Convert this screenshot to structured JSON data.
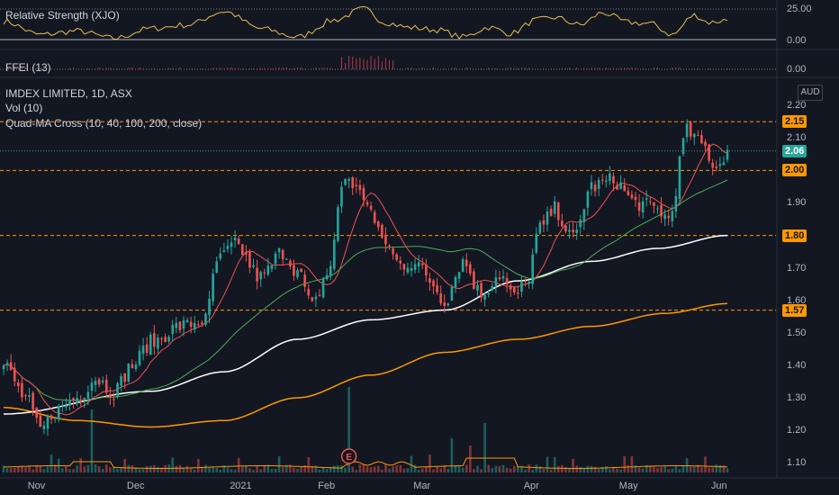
{
  "header": {
    "rs_title": "Relative Strength (XJO)",
    "rs_ticks": [
      "25.00",
      "0.00"
    ],
    "fei_title": "FFEI (13)",
    "fei_tick": "0.00",
    "main_title": "IMDEX LIMITED, 1D, ASX",
    "vol_title": "Vol (10)",
    "ma_title": "Quad-MA Cross (10, 40, 100, 200, close)",
    "currency": "AUD",
    "earnings_marker": "E"
  },
  "colors": {
    "background": "#131722",
    "up": "#26a69a",
    "down": "#ef5350",
    "ma10": "#ef5350",
    "ma40": "#4caf50",
    "ma100": "#ffffff",
    "ma200": "#ff9800",
    "level": "#ff9800",
    "rs": "#e6c14f"
  },
  "chart_data": {
    "type": "candlestick",
    "y_ticks": [
      "2.20",
      "2.10",
      "2.00",
      "1.90",
      "1.80",
      "1.70",
      "1.60",
      "1.50",
      "1.40",
      "1.30",
      "1.20",
      "1.10"
    ],
    "ylim": [
      1.07,
      2.22
    ],
    "x_tick_labels": [
      "Nov",
      "Dec",
      "2021",
      "Feb",
      "Mar",
      "Apr",
      "May",
      "Jun"
    ],
    "levels": [
      {
        "value": 2.15,
        "label": "2.15"
      },
      {
        "value": 2.0,
        "label": "2.00"
      },
      {
        "value": 1.8,
        "label": "1.80"
      },
      {
        "value": 1.57,
        "label": "1.57"
      }
    ],
    "last_price": {
      "value": 2.06,
      "label": "2.06"
    },
    "ma_anchors": {
      "ma100": [
        [
          0,
          1.25
        ],
        [
          40,
          1.32
        ],
        [
          60,
          1.38
        ],
        [
          80,
          1.48
        ],
        [
          100,
          1.54
        ],
        [
          120,
          1.57
        ],
        [
          140,
          1.66
        ],
        [
          160,
          1.72
        ],
        [
          178,
          1.76
        ],
        [
          197,
          1.8
        ]
      ],
      "ma200": [
        [
          0,
          1.27
        ],
        [
          20,
          1.23
        ],
        [
          40,
          1.21
        ],
        [
          60,
          1.23
        ],
        [
          80,
          1.3
        ],
        [
          100,
          1.37
        ],
        [
          120,
          1.44
        ],
        [
          140,
          1.48
        ],
        [
          160,
          1.52
        ],
        [
          180,
          1.56
        ],
        [
          197,
          1.59
        ]
      ]
    },
    "candle_anchors": [
      [
        0,
        1.4
      ],
      [
        6,
        1.3
      ],
      [
        10,
        1.2
      ],
      [
        14,
        1.26
      ],
      [
        20,
        1.3
      ],
      [
        25,
        1.36
      ],
      [
        30,
        1.32
      ],
      [
        35,
        1.4
      ],
      [
        40,
        1.47
      ],
      [
        48,
        1.52
      ],
      [
        55,
        1.54
      ],
      [
        58,
        1.72
      ],
      [
        63,
        1.77
      ],
      [
        70,
        1.67
      ],
      [
        76,
        1.75
      ],
      [
        80,
        1.69
      ],
      [
        84,
        1.58
      ],
      [
        88,
        1.68
      ],
      [
        93,
        1.98
      ],
      [
        98,
        1.92
      ],
      [
        103,
        1.79
      ],
      [
        108,
        1.71
      ],
      [
        112,
        1.72
      ],
      [
        116,
        1.66
      ],
      [
        120,
        1.6
      ],
      [
        125,
        1.72
      ],
      [
        130,
        1.62
      ],
      [
        135,
        1.68
      ],
      [
        139,
        1.61
      ],
      [
        142,
        1.65
      ],
      [
        146,
        1.82
      ],
      [
        150,
        1.88
      ],
      [
        155,
        1.79
      ],
      [
        160,
        1.95
      ],
      [
        166,
        1.97
      ],
      [
        172,
        1.9
      ],
      [
        178,
        1.88
      ],
      [
        181,
        1.85
      ],
      [
        186,
        2.12
      ],
      [
        190,
        2.08
      ],
      [
        194,
        2.01
      ],
      [
        197,
        2.06
      ]
    ],
    "rs_anchors": [
      [
        0,
        15
      ],
      [
        10,
        4
      ],
      [
        20,
        7
      ],
      [
        30,
        1
      ],
      [
        40,
        9
      ],
      [
        50,
        12
      ],
      [
        60,
        23
      ],
      [
        70,
        9
      ],
      [
        80,
        2
      ],
      [
        90,
        16
      ],
      [
        98,
        25
      ],
      [
        104,
        14
      ],
      [
        110,
        10
      ],
      [
        118,
        8
      ],
      [
        125,
        2
      ],
      [
        132,
        10
      ],
      [
        138,
        5
      ],
      [
        145,
        16
      ],
      [
        150,
        18
      ],
      [
        157,
        12
      ],
      [
        163,
        22
      ],
      [
        170,
        14
      ],
      [
        176,
        13
      ],
      [
        182,
        4
      ],
      [
        188,
        20
      ],
      [
        192,
        14
      ],
      [
        197,
        16
      ]
    ]
  }
}
